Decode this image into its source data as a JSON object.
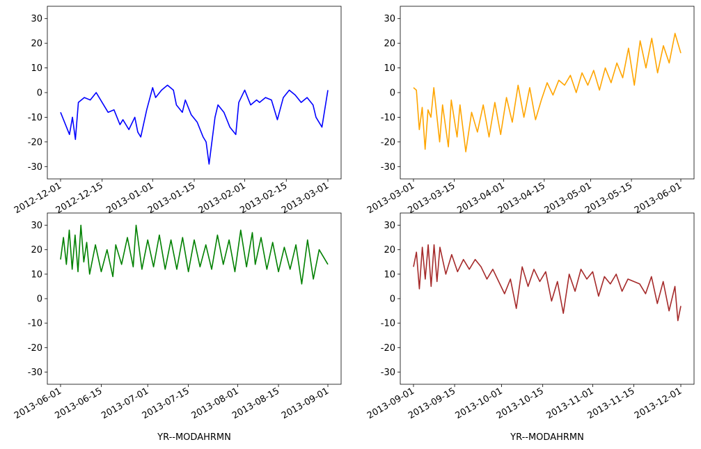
{
  "chart_data": [
    {
      "type": "line",
      "color": "#0000ff",
      "xlabel": "",
      "ylim": [
        -35,
        35
      ],
      "y_ticks": [
        -30,
        -20,
        -10,
        0,
        10,
        20,
        30
      ],
      "x_range": [
        "2012-12-01",
        "2013-03-01"
      ],
      "x_ticks": [
        "2012-12-01",
        "2012-12-15",
        "2013-01-01",
        "2013-01-15",
        "2013-02-01",
        "2013-02-15",
        "2013-03-01"
      ],
      "series": [
        {
          "x": [
            "2012-12-01",
            "2012-12-03",
            "2012-12-04",
            "2012-12-05",
            "2012-12-06",
            "2012-12-07",
            "2012-12-09",
            "2012-12-11",
            "2012-12-13",
            "2012-12-15",
            "2012-12-17",
            "2012-12-19",
            "2012-12-21",
            "2012-12-22",
            "2012-12-24",
            "2012-12-26",
            "2012-12-27",
            "2012-12-28",
            "2012-12-30",
            "2013-01-01",
            "2013-01-02",
            "2013-01-04",
            "2013-01-06",
            "2013-01-08",
            "2013-01-09",
            "2013-01-11",
            "2013-01-12",
            "2013-01-14",
            "2013-01-16",
            "2013-01-18",
            "2013-01-19",
            "2013-01-20",
            "2013-01-22",
            "2013-01-23",
            "2013-01-25",
            "2013-01-27",
            "2013-01-29",
            "2013-01-30",
            "2013-02-01",
            "2013-02-03",
            "2013-02-05",
            "2013-02-06",
            "2013-02-08",
            "2013-02-10",
            "2013-02-12",
            "2013-02-14",
            "2013-02-16",
            "2013-02-18",
            "2013-02-20",
            "2013-02-22",
            "2013-02-24",
            "2013-02-25",
            "2013-02-27",
            "2013-03-01"
          ],
          "y": [
            -8,
            -14,
            -17,
            -10,
            -19,
            -4,
            -2,
            -3,
            0,
            -4,
            -8,
            -7,
            -13,
            -11,
            -15,
            -10,
            -16,
            -18,
            -7,
            2,
            -2,
            1,
            3,
            1,
            -5,
            -8,
            -3,
            -9,
            -12,
            -18,
            -20,
            -29,
            -10,
            -5,
            -8,
            -14,
            -17,
            -4,
            1,
            -5,
            -3,
            -4,
            -2,
            -3,
            -11,
            -2,
            1,
            -1,
            -4,
            -2,
            -5,
            -10,
            -14,
            1
          ]
        }
      ]
    },
    {
      "type": "line",
      "color": "#ffa500",
      "xlabel": "",
      "ylim": [
        -35,
        35
      ],
      "y_ticks": [
        -30,
        -20,
        -10,
        0,
        10,
        20,
        30
      ],
      "x_range": [
        "2013-03-01",
        "2013-06-01"
      ],
      "x_ticks": [
        "2013-03-01",
        "2013-03-15",
        "2013-04-01",
        "2013-04-15",
        "2013-05-01",
        "2013-05-15",
        "2013-06-01"
      ],
      "series": [
        {
          "x": [
            "2013-03-01",
            "2013-03-02",
            "2013-03-03",
            "2013-03-04",
            "2013-03-05",
            "2013-03-06",
            "2013-03-07",
            "2013-03-08",
            "2013-03-10",
            "2013-03-11",
            "2013-03-13",
            "2013-03-14",
            "2013-03-16",
            "2013-03-17",
            "2013-03-19",
            "2013-03-21",
            "2013-03-23",
            "2013-03-25",
            "2013-03-27",
            "2013-03-29",
            "2013-03-31",
            "2013-04-02",
            "2013-04-04",
            "2013-04-06",
            "2013-04-08",
            "2013-04-10",
            "2013-04-12",
            "2013-04-14",
            "2013-04-16",
            "2013-04-18",
            "2013-04-20",
            "2013-04-22",
            "2013-04-24",
            "2013-04-26",
            "2013-04-28",
            "2013-04-30",
            "2013-05-02",
            "2013-05-04",
            "2013-05-06",
            "2013-05-08",
            "2013-05-10",
            "2013-05-12",
            "2013-05-14",
            "2013-05-16",
            "2013-05-18",
            "2013-05-20",
            "2013-05-22",
            "2013-05-24",
            "2013-05-26",
            "2013-05-28",
            "2013-05-30",
            "2013-06-01"
          ],
          "y": [
            2,
            1,
            -15,
            -6,
            -23,
            -7,
            -10,
            2,
            -20,
            -5,
            -22,
            -3,
            -18,
            -5,
            -24,
            -8,
            -16,
            -5,
            -18,
            -4,
            -17,
            -2,
            -12,
            3,
            -10,
            2,
            -11,
            -3,
            4,
            -1,
            5,
            3,
            7,
            0,
            8,
            3,
            9,
            1,
            10,
            4,
            12,
            6,
            18,
            3,
            21,
            10,
            22,
            8,
            19,
            12,
            24,
            16
          ]
        }
      ]
    },
    {
      "type": "line",
      "color": "#008000",
      "xlabel": "YR--MODAHRMN",
      "ylim": [
        -35,
        35
      ],
      "y_ticks": [
        -30,
        -20,
        -10,
        0,
        10,
        20,
        30
      ],
      "x_range": [
        "2013-06-01",
        "2013-09-01"
      ],
      "x_ticks": [
        "2013-06-01",
        "2013-06-15",
        "2013-07-01",
        "2013-07-15",
        "2013-08-01",
        "2013-08-15",
        "2013-09-01"
      ],
      "series": [
        {
          "x": [
            "2013-06-01",
            "2013-06-02",
            "2013-06-03",
            "2013-06-04",
            "2013-06-05",
            "2013-06-06",
            "2013-06-07",
            "2013-06-08",
            "2013-06-09",
            "2013-06-10",
            "2013-06-11",
            "2013-06-13",
            "2013-06-15",
            "2013-06-17",
            "2013-06-19",
            "2013-06-20",
            "2013-06-22",
            "2013-06-24",
            "2013-06-26",
            "2013-06-27",
            "2013-06-29",
            "2013-07-01",
            "2013-07-03",
            "2013-07-05",
            "2013-07-07",
            "2013-07-09",
            "2013-07-11",
            "2013-07-13",
            "2013-07-15",
            "2013-07-17",
            "2013-07-19",
            "2013-07-21",
            "2013-07-23",
            "2013-07-25",
            "2013-07-27",
            "2013-07-29",
            "2013-07-31",
            "2013-08-02",
            "2013-08-04",
            "2013-08-06",
            "2013-08-07",
            "2013-08-09",
            "2013-08-11",
            "2013-08-13",
            "2013-08-15",
            "2013-08-17",
            "2013-08-19",
            "2013-08-21",
            "2013-08-23",
            "2013-08-25",
            "2013-08-27",
            "2013-08-29",
            "2013-09-01"
          ],
          "y": [
            16,
            25,
            14,
            28,
            12,
            26,
            11,
            30,
            15,
            23,
            10,
            22,
            11,
            20,
            9,
            22,
            14,
            25,
            13,
            30,
            12,
            24,
            13,
            26,
            12,
            24,
            12,
            25,
            11,
            24,
            13,
            22,
            12,
            26,
            14,
            24,
            11,
            28,
            13,
            27,
            14,
            25,
            12,
            23,
            11,
            21,
            12,
            22,
            6,
            24,
            8,
            20,
            14
          ]
        }
      ]
    },
    {
      "type": "line",
      "color": "#a52a2a",
      "xlabel": "YR--MODAHRMN",
      "ylim": [
        -35,
        35
      ],
      "y_ticks": [
        -30,
        -20,
        -10,
        0,
        10,
        20,
        30
      ],
      "x_range": [
        "2013-09-01",
        "2013-12-01"
      ],
      "x_ticks": [
        "2013-09-01",
        "2013-09-15",
        "2013-10-01",
        "2013-10-15",
        "2013-11-01",
        "2013-11-15",
        "2013-12-01"
      ],
      "series": [
        {
          "x": [
            "2013-09-01",
            "2013-09-02",
            "2013-09-03",
            "2013-09-04",
            "2013-09-05",
            "2013-09-06",
            "2013-09-07",
            "2013-09-08",
            "2013-09-09",
            "2013-09-10",
            "2013-09-12",
            "2013-09-14",
            "2013-09-16",
            "2013-09-18",
            "2013-09-20",
            "2013-09-22",
            "2013-09-24",
            "2013-09-26",
            "2013-09-28",
            "2013-09-30",
            "2013-10-02",
            "2013-10-04",
            "2013-10-06",
            "2013-10-08",
            "2013-10-10",
            "2013-10-12",
            "2013-10-14",
            "2013-10-16",
            "2013-10-18",
            "2013-10-20",
            "2013-10-22",
            "2013-10-24",
            "2013-10-26",
            "2013-10-28",
            "2013-10-30",
            "2013-11-01",
            "2013-11-03",
            "2013-11-05",
            "2013-11-07",
            "2013-11-09",
            "2013-11-11",
            "2013-11-13",
            "2013-11-15",
            "2013-11-17",
            "2013-11-19",
            "2013-11-21",
            "2013-11-23",
            "2013-11-25",
            "2013-11-27",
            "2013-11-29",
            "2013-11-30",
            "2013-12-01"
          ],
          "y": [
            13,
            19,
            4,
            21,
            8,
            22,
            5,
            22,
            7,
            21,
            10,
            18,
            11,
            16,
            12,
            16,
            13,
            8,
            12,
            7,
            2,
            8,
            -4,
            13,
            5,
            12,
            7,
            11,
            -1,
            7,
            -6,
            10,
            3,
            12,
            8,
            11,
            1,
            9,
            6,
            10,
            3,
            8,
            7,
            6,
            2,
            9,
            -2,
            7,
            -5,
            5,
            -9,
            -3
          ]
        }
      ]
    }
  ]
}
